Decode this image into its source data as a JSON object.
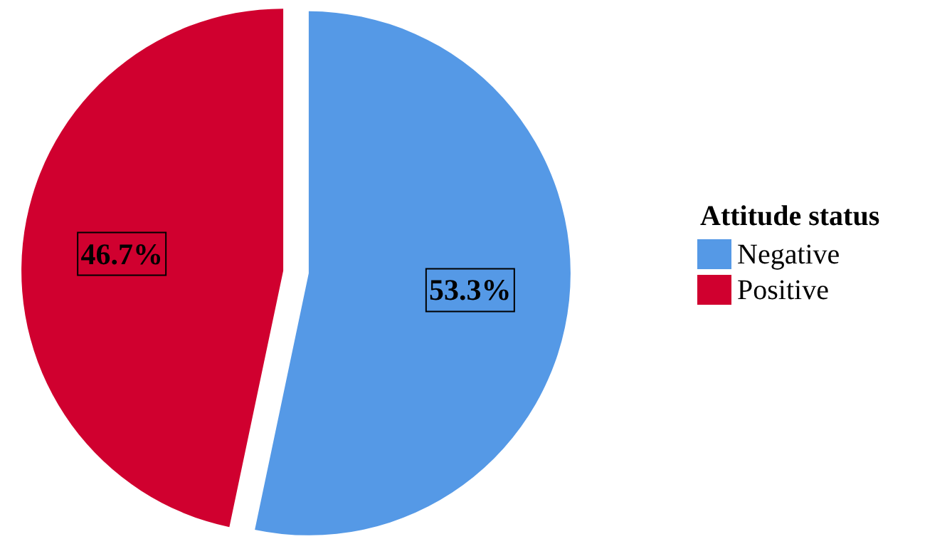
{
  "chart_data": {
    "type": "pie",
    "legend_title": "Attitude status",
    "legend": "right",
    "value_labels": [
      "53.3%",
      "46.7%"
    ],
    "categories": [
      "Negative",
      "Positive"
    ],
    "values": [
      53.3,
      46.7
    ],
    "colors": [
      "#5599e6",
      "#d0002f"
    ]
  }
}
